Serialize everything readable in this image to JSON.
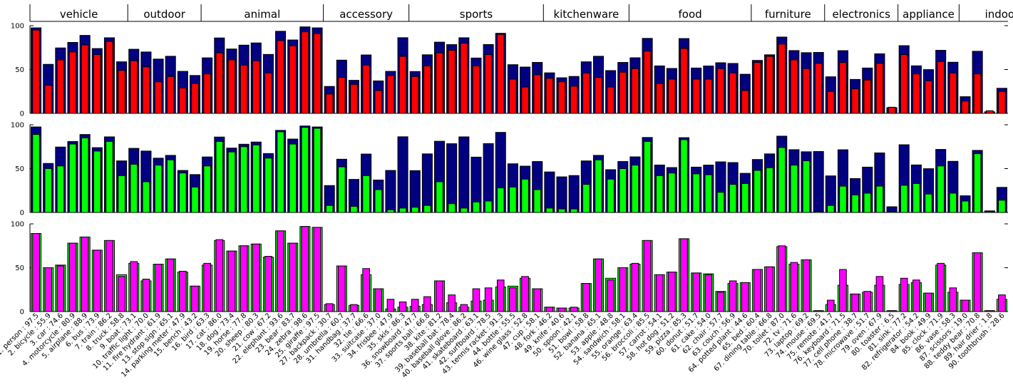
{
  "chart_data": {
    "type": "bar",
    "groups": [
      {
        "label": "vehicle",
        "start": 1,
        "end": 8
      },
      {
        "label": "outdoor",
        "start": 9,
        "end": 14
      },
      {
        "label": "animal",
        "start": 15,
        "end": 24
      },
      {
        "label": "accessory",
        "start": 25,
        "end": 31
      },
      {
        "label": "sports",
        "start": 32,
        "end": 42
      },
      {
        "label": "kitchenware",
        "start": 43,
        "end": 49
      },
      {
        "label": "food",
        "start": 50,
        "end": 59
      },
      {
        "label": "furniture",
        "start": 60,
        "end": 65
      },
      {
        "label": "electronics",
        "start": 66,
        "end": 71
      },
      {
        "label": "appliance",
        "start": 72,
        "end": 76
      },
      {
        "label": "indoor",
        "start": 77,
        "end": 83
      }
    ],
    "categories": [
      "1. person : 97.5",
      "2. bicycle : 55.9",
      "3. car : 74.6",
      "4. motorcycle : 80.9",
      "5. airplane : 88.9",
      "6. bus : 73.9",
      "7. train : 86.2",
      "8. truck : 58.8",
      "9. boat : 73.1",
      "10. traffic light : 70.0",
      "11. fire hydrant : 61.9",
      "13. stop sign : 65.1",
      "14. parking meter : 47.9",
      "15. bench : 43.2",
      "16. bird : 63.3",
      "17. cat : 86.0",
      "18. dog : 73.4",
      "19. horse : 77.8",
      "20. sheep : 80.3",
      "21. cow : 67.2",
      "22. elephant : 93.6",
      "23. bear : 83.7",
      "24. zebra : 98.6",
      "25. giraffe : 97.5",
      "27. backpack : 30.7",
      "28. umbrella : 60.7",
      "31. handbag : 37.7",
      "32. tie : 66.6",
      "33. suitcase : 37.0",
      "34. frisbee : 47.9",
      "35. skis : 86.3",
      "36. snowboard : 47.7",
      "37. sports ball : 66.8",
      "38. kite : 81.2",
      "39. baseball bat : 78.4",
      "40. baseball glove : 86.2",
      "41. skateboard : 63.1",
      "42. surfboard : 78.5",
      "43. tennis racket : 91.3",
      "44. bottle : 55.5",
      "46. wine glass : 52.8",
      "47. cup : 58.1",
      "48. fork : 46.2",
      "49. knife : 40.6",
      "50. spoon : 42.1",
      "51. bowl : 58.8",
      "52. banana : 65.1",
      "53. apple : 48.8",
      "54. sandwich : 58.1",
      "55. orange : 63.4",
      "56. broccoli : 85.5",
      "57. carrot : 54.1",
      "58. hot dog : 51.2",
      "59. pizza : 85.3",
      "60. donut : 51.7",
      "61. cake : 54.0",
      "62. chair : 57.7",
      "63. couch : 56.9",
      "64. potted plant : 44.6",
      "65. bed : 60.4",
      "67. dining table : 66.8",
      "70. toilet : 87.0",
      "72. tv : 71.6",
      "73. laptop : 69.2",
      "74. mouse : 69.5",
      "75. remote : 41.7",
      "76. keyboard : 71.5",
      "77. cell phone : 38.7",
      "78. microwave : 51.7",
      "79. oven : 67.9",
      "80. toaster : 6.5",
      "81. sink : 77.2",
      "82. refrigerator : 54.2",
      "84. book : 49.9",
      "85. clock : 71.9",
      "86. vase : 58.3",
      "87. scissors : 19.0",
      "88. teddy bear : 70.8",
      "89. hair drier : 1.8",
      "90. toothbrush : 28.6"
    ],
    "ylim": [
      0,
      100
    ],
    "yticks": [
      "0",
      "50",
      "100"
    ],
    "colors": {
      "blue": "#000080",
      "red": "#ff0000",
      "green": "#00ff00",
      "magenta": "#ff00ff"
    },
    "panels": [
      {
        "id": "top",
        "series": [
          {
            "color": "blue",
            "values": [
              97.5,
              55.9,
              74.6,
              80.9,
              88.9,
              73.9,
              86.2,
              58.8,
              73.1,
              70.0,
              61.9,
              65.1,
              47.9,
              43.2,
              63.3,
              86.0,
              73.4,
              77.8,
              80.3,
              67.2,
              93.6,
              83.7,
              98.6,
              97.5,
              30.7,
              60.7,
              37.7,
              66.6,
              37.0,
              47.9,
              86.3,
              47.7,
              66.8,
              81.2,
              78.4,
              86.2,
              63.1,
              78.5,
              91.3,
              55.5,
              52.8,
              58.1,
              46.2,
              40.6,
              42.1,
              58.8,
              65.1,
              48.8,
              58.1,
              63.4,
              85.5,
              54.1,
              51.2,
              85.3,
              51.7,
              54.0,
              57.7,
              56.9,
              44.6,
              60.4,
              66.8,
              87.0,
              71.6,
              69.2,
              69.5,
              41.7,
              71.5,
              38.7,
              51.7,
              67.9,
              6.5,
              77.2,
              54.2,
              49.9,
              71.9,
              58.3,
              19.0,
              70.8,
              1.8,
              28.6
            ]
          },
          {
            "color": "red",
            "values": [
              95,
              32,
              61,
              70,
              78,
              67,
              82,
              49,
              60,
              53,
              36,
              42,
              29,
              34,
              45,
              69,
              61,
              55,
              60,
              46,
              83,
              77,
              93,
              91,
              22,
              41,
              33,
              55,
              26,
              43,
              65,
              42,
              54,
              69,
              72,
              80,
              54,
              67,
              90,
              39,
              30,
              44,
              40,
              36,
              31,
              46,
              41,
              30,
              47,
              51,
              71,
              34,
              39,
              74,
              39,
              39,
              51,
              46,
              26,
              58,
              65,
              79,
              61,
              51,
              57,
              25,
              58,
              28,
              38,
              57,
              7,
              67,
              45,
              37,
              59,
              46,
              14,
              45,
              3,
              25
            ]
          }
        ]
      },
      {
        "id": "middle",
        "series": [
          {
            "color": "blue",
            "values": [
              97.5,
              55.9,
              74.6,
              80.9,
              88.9,
              73.9,
              86.2,
              58.8,
              73.1,
              70.0,
              61.9,
              65.1,
              47.9,
              43.2,
              63.3,
              86.0,
              73.4,
              77.8,
              80.3,
              67.2,
              93.6,
              83.7,
              98.6,
              97.5,
              30.7,
              60.7,
              37.7,
              66.6,
              37.0,
              47.9,
              86.3,
              47.7,
              66.8,
              81.2,
              78.4,
              86.2,
              63.1,
              78.5,
              91.3,
              55.5,
              52.8,
              58.1,
              46.2,
              40.6,
              42.1,
              58.8,
              65.1,
              48.8,
              58.1,
              63.4,
              85.5,
              54.1,
              51.2,
              85.3,
              51.7,
              54.0,
              57.7,
              56.9,
              44.6,
              60.4,
              66.8,
              87.0,
              71.6,
              69.2,
              69.5,
              41.7,
              71.5,
              38.7,
              51.7,
              67.9,
              6.5,
              77.2,
              54.2,
              49.9,
              71.9,
              58.3,
              19.0,
              70.8,
              1.8,
              28.6
            ]
          },
          {
            "color": "green",
            "values": [
              89,
              50,
              53,
              78,
              85,
              70,
              81,
              42,
              55,
              35,
              54,
              60,
              45,
              29,
              53,
              81,
              69,
              75,
              77,
              62,
              92,
              78,
              97,
              96,
              8,
              52,
              7,
              42,
              26,
              3,
              5,
              6,
              8,
              35,
              10,
              5,
              12,
              13,
              28,
              29,
              38,
              26,
              5,
              4,
              4,
              32,
              60,
              38,
              50,
              54,
              81,
              42,
              45,
              83,
              44,
              43,
              23,
              32,
              33,
              48,
              51,
              74,
              54,
              59,
              1,
              8,
              30,
              20,
              22,
              30,
              1,
              31,
              33,
              21,
              53,
              22,
              13,
              67,
              1,
              14
            ]
          }
        ]
      },
      {
        "id": "bottom",
        "series": [
          {
            "color": "green",
            "values": [
              89,
              50,
              53,
              78,
              85,
              70,
              81,
              42,
              55,
              35,
              54,
              60,
              45,
              29,
              53,
              81,
              69,
              75,
              77,
              62,
              92,
              78,
              97,
              96,
              8,
              52,
              7,
              42,
              26,
              3,
              5,
              6,
              8,
              35,
              10,
              5,
              12,
              13,
              28,
              29,
              38,
              26,
              5,
              4,
              4,
              32,
              60,
              38,
              50,
              54,
              81,
              42,
              45,
              83,
              44,
              43,
              23,
              32,
              33,
              48,
              51,
              74,
              54,
              59,
              1,
              8,
              30,
              20,
              22,
              30,
              1,
              31,
              33,
              21,
              53,
              22,
              13,
              67,
              1,
              14
            ]
          },
          {
            "color": "magenta",
            "values": [
              89,
              50,
              52,
              78,
              85,
              70,
              81,
              40,
              57,
              37,
              54,
              60,
              46,
              29,
              55,
              82,
              69,
              75,
              77,
              63,
              92,
              78,
              97,
              96,
              9,
              52,
              8,
              49,
              26,
              14,
              11,
              14,
              17,
              35,
              19,
              8,
              26,
              27,
              36,
              27,
              40,
              26,
              5,
              4,
              5,
              32,
              60,
              36,
              50,
              55,
              81,
              42,
              45,
              83,
              44,
              42,
              22,
              35,
              33,
              48,
              51,
              75,
              56,
              59,
              1,
              13,
              48,
              20,
              23,
              40,
              1,
              38,
              36,
              21,
              55,
              27,
              13,
              67,
              1,
              19
            ]
          }
        ]
      }
    ]
  }
}
